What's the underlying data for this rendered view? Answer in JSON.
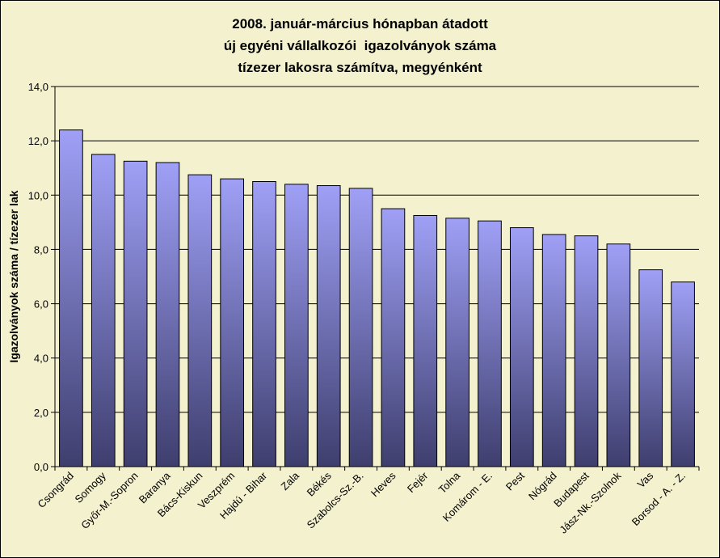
{
  "chart_data": {
    "type": "bar",
    "title": [
      "2008. január-március hónapban átadott",
      "új egyéni vállalkozói  igazolványok száma",
      "tízezer lakosra számítva, megyénként"
    ],
    "ylabel": "Igazolványok száma / tízezer lak",
    "xlabel": "",
    "ylim": [
      0,
      14
    ],
    "yticks": [
      "0,0",
      "2,0",
      "4,0",
      "6,0",
      "8,0",
      "10,0",
      "12,0",
      "14,0"
    ],
    "grid": true,
    "legend": "none",
    "categories": [
      "Csongrád",
      "Somogy",
      "Győr-M.-Sopron",
      "Baranya",
      "Bács-Kiskun",
      "Veszprém",
      "Hajdú - Bihar",
      "Zala",
      "Békés",
      "Szabolcs-Sz.-B.",
      "Heves",
      "Fejér",
      "Tolna",
      "Komárom - E.",
      "Pest",
      "Nógrád",
      "Budapest",
      "Jász-Nk.-Szolnok",
      "Vas",
      "Borsod - A. - Z."
    ],
    "values": [
      12.4,
      11.5,
      11.25,
      11.2,
      10.75,
      10.6,
      10.5,
      10.4,
      10.35,
      10.25,
      9.5,
      9.25,
      9.15,
      9.05,
      8.8,
      8.55,
      8.5,
      8.2,
      7.25,
      6.8
    ],
    "colors": {
      "bar_top": "#9fa0f6",
      "bar_bottom": "#3e3e6e",
      "plot_bg": "#f4f1cf",
      "grid": "#000000"
    }
  }
}
